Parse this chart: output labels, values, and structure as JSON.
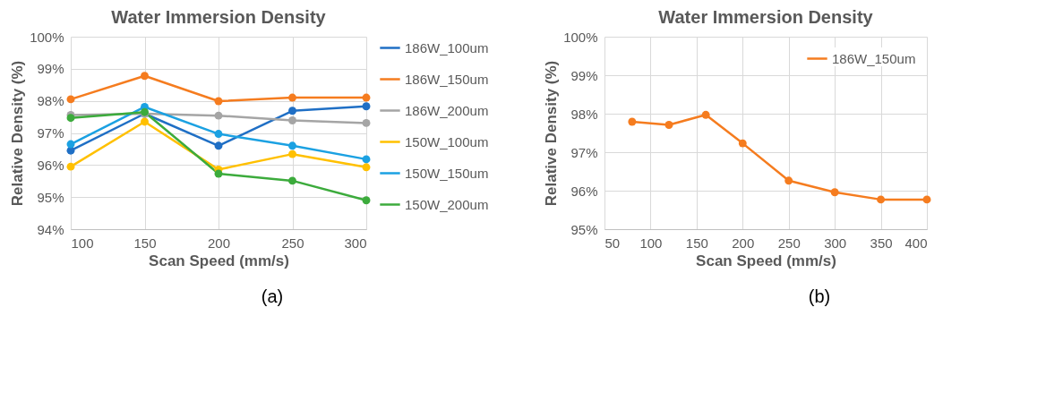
{
  "chart_data": [
    {
      "type": "line",
      "title": "Water Immersion Density",
      "xlabel": "Scan Speed (mm/s)",
      "ylabel": "Relative Density (%)",
      "x": [
        100,
        150,
        200,
        250,
        300
      ],
      "xlim": [
        100,
        300
      ],
      "xticks": [
        100,
        150,
        200,
        250,
        300
      ],
      "ylim": [
        94,
        100
      ],
      "yticks": [
        {
          "value": 94,
          "label": "94%"
        },
        {
          "value": 95,
          "label": "95%"
        },
        {
          "value": 96,
          "label": "96%"
        },
        {
          "value": 97,
          "label": "97%"
        },
        {
          "value": 98,
          "label": "98%"
        },
        {
          "value": 99,
          "label": "99%"
        },
        {
          "value": 100,
          "label": "100%"
        }
      ],
      "grid": true,
      "legend": "right",
      "marker": "circle",
      "line_style": "solid",
      "annotations": [
        "(a)"
      ],
      "series": [
        {
          "name": "186W_100um",
          "color": "#1f6fc5",
          "values": [
            96.45,
            97.6,
            96.6,
            97.69,
            97.83
          ]
        },
        {
          "name": "186W_150um",
          "color": "#f57c1f",
          "values": [
            98.05,
            98.78,
            97.99,
            98.1,
            98.1
          ]
        },
        {
          "name": "186W_200um",
          "color": "#a5a5a5",
          "values": [
            97.56,
            97.6,
            97.54,
            97.39,
            97.31
          ]
        },
        {
          "name": "150W_100um",
          "color": "#ffc000",
          "values": [
            95.95,
            97.35,
            95.86,
            96.34,
            95.93
          ]
        },
        {
          "name": "150W_150um",
          "color": "#1ba1e2",
          "values": [
            96.65,
            97.81,
            96.97,
            96.6,
            96.18
          ]
        },
        {
          "name": "150W_200um",
          "color": "#3cab3c",
          "values": [
            97.47,
            97.65,
            95.73,
            95.51,
            94.9
          ]
        }
      ]
    },
    {
      "type": "line",
      "title": "Water Immersion Density",
      "xlabel": "Scan Speed (mm/s)",
      "ylabel": "Relative Density (%)",
      "x": [
        80,
        120,
        160,
        200,
        250,
        300,
        350,
        400
      ],
      "xlim": [
        50,
        400
      ],
      "xticks": [
        50,
        100,
        150,
        200,
        250,
        300,
        350,
        400
      ],
      "ylim": [
        95,
        100
      ],
      "yticks": [
        {
          "value": 95,
          "label": "95%"
        },
        {
          "value": 96,
          "label": "96%"
        },
        {
          "value": 97,
          "label": "97%"
        },
        {
          "value": 98,
          "label": "98%"
        },
        {
          "value": 99,
          "label": "99%"
        },
        {
          "value": 100,
          "label": "100%"
        }
      ],
      "grid": true,
      "legend": "top right",
      "marker": "circle",
      "line_style": "solid",
      "annotations": [
        "(b)"
      ],
      "series": [
        {
          "name": "186W_150um",
          "color": "#f57c1f",
          "values": [
            97.79,
            97.71,
            97.97,
            97.23,
            96.26,
            95.96,
            95.77,
            95.77
          ]
        }
      ]
    }
  ]
}
